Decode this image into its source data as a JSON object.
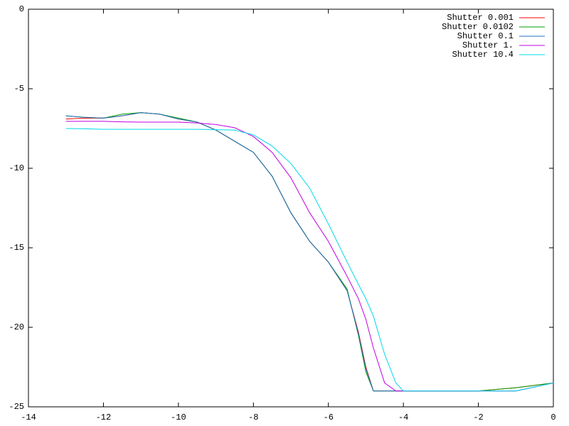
{
  "chart_data": {
    "type": "line",
    "x": [
      -13,
      -12.5,
      -12,
      -11.5,
      -11,
      -10.5,
      -10,
      -9.5,
      -9,
      -8.5,
      -8,
      -7.5,
      -7,
      -6.5,
      -6,
      -5.5,
      -5.2,
      -5,
      -4.8,
      -4.5,
      -4.2,
      -4,
      -3,
      -2,
      -1,
      0
    ],
    "series": [
      {
        "name": "Shutter 0.001",
        "color": "#ff0000",
        "values": [
          -6.9,
          -6.85,
          -6.85,
          -6.7,
          -6.5,
          -6.6,
          -6.9,
          -7.1,
          -7.6,
          -8.3,
          -9.0,
          -10.5,
          -12.8,
          -14.6,
          -15.9,
          -17.7,
          -20.3,
          -22.5,
          -24,
          -24,
          -24,
          -24,
          -24,
          -24,
          -23.8,
          -23.5
        ]
      },
      {
        "name": "Shutter 0.0102",
        "color": "#00a000",
        "values": [
          -6.7,
          -6.8,
          -6.85,
          -6.6,
          -6.5,
          -6.6,
          -6.85,
          -7.1,
          -7.6,
          -8.3,
          -9.0,
          -10.5,
          -12.8,
          -14.6,
          -15.9,
          -17.6,
          -20.5,
          -22.8,
          -24,
          -24,
          -24,
          -24,
          -24,
          -24,
          -23.8,
          -23.5
        ]
      },
      {
        "name": "Shutter 0.1",
        "color": "#1f6fc0",
        "values": [
          -6.7,
          -6.8,
          -6.85,
          -6.7,
          -6.5,
          -6.6,
          -6.9,
          -7.1,
          -7.6,
          -8.3,
          -9.0,
          -10.5,
          -12.8,
          -14.6,
          -15.9,
          -17.7,
          -20.4,
          -22.6,
          -24,
          -24,
          -24,
          -24,
          -24,
          -24,
          -24,
          -23.5
        ]
      },
      {
        "name": "Shutter 1.",
        "color": "#c000e0",
        "values": [
          -7.05,
          -7.05,
          -7.05,
          -7.08,
          -7.1,
          -7.1,
          -7.1,
          -7.15,
          -7.25,
          -7.45,
          -8.0,
          -9.0,
          -10.6,
          -12.8,
          -14.6,
          -16.8,
          -18.2,
          -19.5,
          -21.3,
          -23.5,
          -24,
          -24,
          -24,
          -24,
          -24,
          -23.5
        ]
      },
      {
        "name": "Shutter 10.4",
        "color": "#00d8e8",
        "values": [
          -7.5,
          -7.52,
          -7.55,
          -7.55,
          -7.55,
          -7.55,
          -7.55,
          -7.55,
          -7.57,
          -7.6,
          -7.9,
          -8.6,
          -9.7,
          -11.25,
          -13.5,
          -15.9,
          -17.3,
          -18.2,
          -19.3,
          -21.7,
          -23.5,
          -24,
          -24,
          -24,
          -24,
          -23.5
        ]
      }
    ],
    "xlim": [
      -14,
      0
    ],
    "xticks": [
      -14,
      -12,
      -10,
      -8,
      -6,
      -4,
      -2,
      0
    ],
    "ylim": [
      -25,
      0
    ],
    "yticks": [
      0,
      -5,
      -10,
      -15,
      -20,
      -25
    ],
    "legend": "top-right"
  }
}
